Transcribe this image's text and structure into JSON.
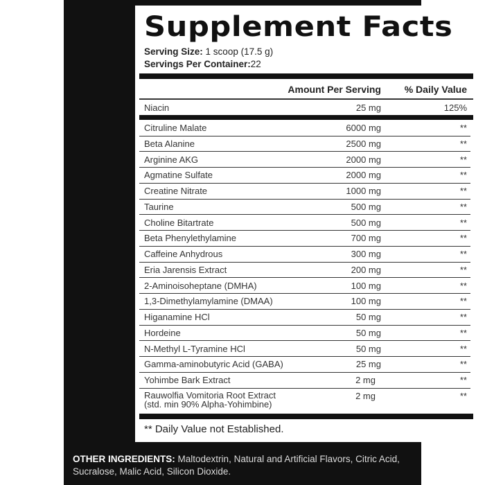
{
  "title": "Supplement Facts",
  "serving_size_label": "Serving Size:",
  "serving_size_value": "1 scoop (17.5 g)",
  "servings_label": "Servings Per Container:",
  "servings_value": "22",
  "col_amount": "Amount Per Serving",
  "col_dv": "% Daily Value",
  "niacin": {
    "name": "Niacin",
    "amount": "25 mg",
    "dv": "125%"
  },
  "rows": [
    {
      "name": "Citruline Malate",
      "amount": "6000 mg",
      "dv": "**"
    },
    {
      "name": "Beta Alanine",
      "amount": "2500 mg",
      "dv": "**"
    },
    {
      "name": "Arginine AKG",
      "amount": "2000 mg",
      "dv": "**"
    },
    {
      "name": "Agmatine Sulfate",
      "amount": "2000 mg",
      "dv": "**"
    },
    {
      "name": "Creatine Nitrate",
      "amount": "1000 mg",
      "dv": "**"
    },
    {
      "name": "Taurine",
      "amount": "500 mg",
      "dv": "**"
    },
    {
      "name": "Choline Bitartrate",
      "amount": "500 mg",
      "dv": "**"
    },
    {
      "name": "Beta Phenylethylamine",
      "amount": "700 mg",
      "dv": "**"
    },
    {
      "name": "Caffeine Anhydrous",
      "amount": "300 mg",
      "dv": "**"
    },
    {
      "name": "Eria Jarensis Extract",
      "amount": "200 mg",
      "dv": "**"
    },
    {
      "name": "2-Aminoisoheptane (DMHA)",
      "amount": "100 mg",
      "dv": "**"
    },
    {
      "name": "1,3-Dimethylamylamine (DMAA)",
      "amount": "100 mg",
      "dv": "**"
    },
    {
      "name": "Higanamine HCl",
      "amount": "50 mg",
      "dv": "**"
    },
    {
      "name": "Hordeine",
      "amount": "50 mg",
      "dv": "**"
    },
    {
      "name": "N-Methyl L-Tyramine HCl",
      "amount": "50 mg",
      "dv": "**"
    },
    {
      "name": "Gamma-aminobutyric Acid (GABA)",
      "amount": "25 mg",
      "dv": "**"
    },
    {
      "name": "Yohimbe Bark Extract",
      "amount": "2 mg",
      "dv": "**"
    }
  ],
  "last_row": {
    "name": "Rauwolfia Vomitoria Root Extract",
    "name2": "(std. min 90% Alpha-Yohimbine)",
    "amount": "2 mg",
    "dv": "**"
  },
  "footnote": "** Daily Value not Established.",
  "other_label": "OTHER INGREDIENTS:",
  "other_text": "Maltodextrin, Natural and Artificial Flavors, Citric Acid, Sucralose, Malic Acid, Silicon Dioxide."
}
